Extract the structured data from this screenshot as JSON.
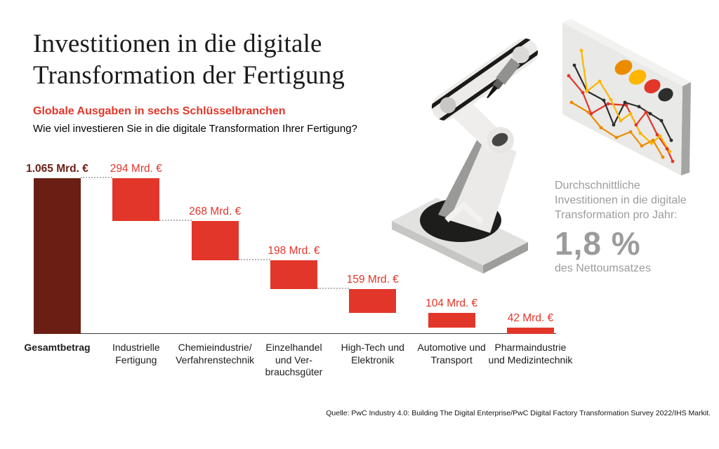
{
  "header": {
    "title_lines": [
      "Investitionen in die digitale",
      "Transformation der Fertigung"
    ],
    "subtitle": "Globale Ausgaben in sechs Schlüsselbranchen",
    "question": "Wie viel investieren Sie in die digitale Transformation Ihrer Fertigung?"
  },
  "chart_data": {
    "type": "bar",
    "subtype": "waterfall",
    "title": "Investitionen in die digitale Transformation der Fertigung",
    "subtitle": "Globale Ausgaben in sechs Schlüsselbranchen",
    "unit": "Mrd. €",
    "categories": [
      "Gesamtbetrag",
      "Industrielle\nFertigung",
      "Chemieindustrie/\nVerfahrenstechnik",
      "Einzelhandel\nund Ver-\nbrauchsgüter",
      "High-Tech und\nElektronik",
      "Automotive und\nTransport",
      "Pharmaindustrie\nund Medizintechnik"
    ],
    "values": [
      1065,
      294,
      268,
      198,
      159,
      104,
      42
    ],
    "value_labels": [
      "1.065 Mrd. €",
      "294 Mrd. €",
      "268 Mrd. €",
      "198 Mrd. €",
      "159 Mrd. €",
      "104 Mrd. €",
      "42 Mrd. €"
    ],
    "total_index": 0,
    "connector_gaps": [
      0,
      1,
      2,
      3
    ],
    "grid": false,
    "legend": false,
    "colors": {
      "total_bar": "#6b1f14",
      "bar": "#e2362a",
      "total_label": "#6b1f14",
      "label": "#e2362a",
      "connector": "#b4b4b4",
      "axis": "#3c3c3c"
    }
  },
  "stat_panel": {
    "description": "Durchschnittliche\nInvestitionen in die digitale\nTransformation pro Jahr:",
    "value": "1,8 %",
    "caption": "des Nettoumsatzes",
    "color": "#9c9c9c"
  },
  "source": "Quelle: PwC Industry 4.0: Building The Digital Enterprise/PwC Digital Factory Transformation Survey 2022/IHS Markit.",
  "illustration": {
    "name": "robot-arm-drawing-line-chart",
    "board_dot_colors": [
      "#eb8c00",
      "#ffb600",
      "#e2362a",
      "#2d2d2d"
    ],
    "board_line_colors": [
      "#e2362a",
      "#2d2d2d",
      "#ffb600",
      "#eb8c00"
    ]
  }
}
